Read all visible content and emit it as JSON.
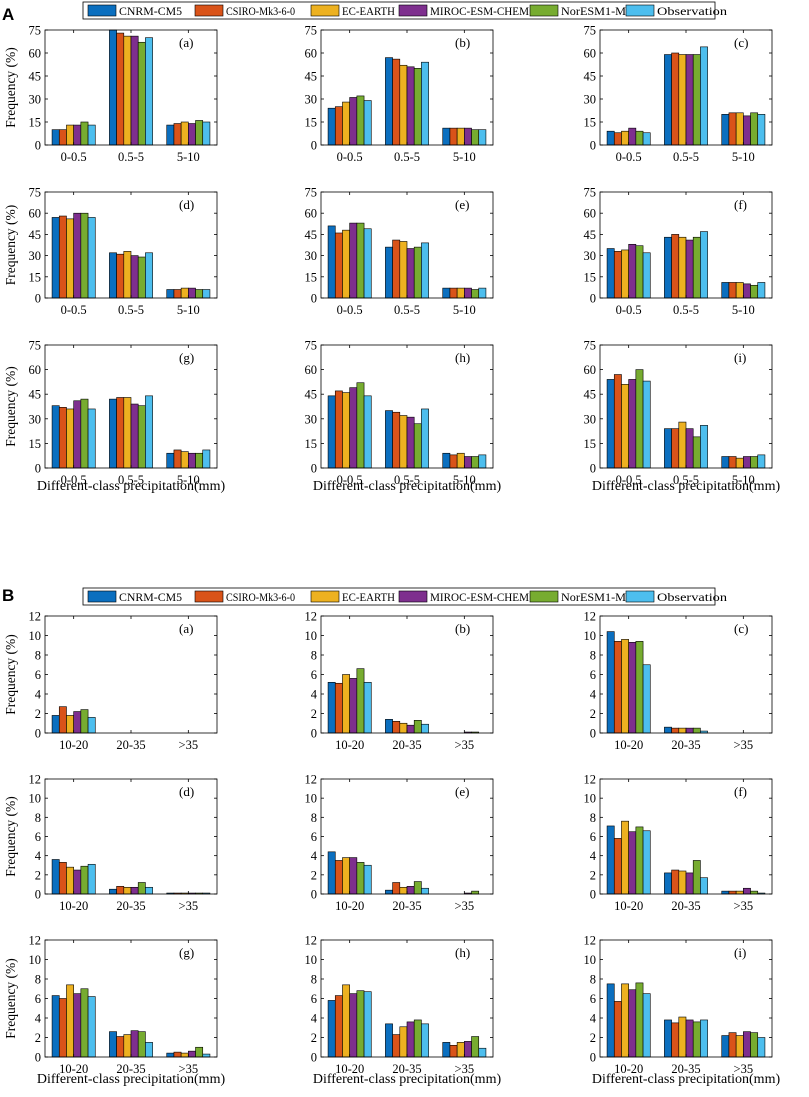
{
  "figure": {
    "colors": [
      "#0b6fbf",
      "#d95319",
      "#edb120",
      "#7e2f8e",
      "#77ac30",
      "#4dbeee"
    ],
    "series_names": [
      "CNRM-CM5",
      "CSIRO-Mk3-6-0",
      "EC-EARTH",
      "MIROC-ESM-CHEM",
      "NorESM1-M",
      "Observation"
    ],
    "ylabel": "Frequency (%)",
    "xlabel": "Different-class precipitation(mm)"
  },
  "chart_data": [
    {
      "type": "bar",
      "panel_label": "A",
      "categories": [
        "0-0.5",
        "0.5-5",
        "5-10"
      ],
      "ylim": [
        0,
        75
      ],
      "yticks": [
        0,
        15,
        30,
        45,
        60,
        75
      ],
      "subplots": [
        {
          "label": "(a)",
          "values": [
            [
              10,
              75,
              13
            ],
            [
              10,
              73,
              14
            ],
            [
              13,
              71,
              15
            ],
            [
              13,
              71,
              14
            ],
            [
              15,
              67,
              16
            ],
            [
              13,
              70,
              15
            ]
          ]
        },
        {
          "label": "(b)",
          "values": [
            [
              24,
              57,
              11
            ],
            [
              25,
              56,
              11
            ],
            [
              28,
              52,
              11
            ],
            [
              31,
              51,
              11
            ],
            [
              32,
              50,
              10
            ],
            [
              29,
              54,
              10
            ]
          ]
        },
        {
          "label": "(c)",
          "values": [
            [
              9,
              59,
              20
            ],
            [
              8,
              60,
              21
            ],
            [
              9,
              59,
              21
            ],
            [
              11,
              59,
              19
            ],
            [
              9,
              59,
              21
            ],
            [
              8,
              64,
              20
            ]
          ]
        },
        {
          "label": "(d)",
          "values": [
            [
              57,
              32,
              6
            ],
            [
              58,
              31,
              6
            ],
            [
              56,
              33,
              7
            ],
            [
              60,
              30,
              7
            ],
            [
              60,
              29,
              6
            ],
            [
              57,
              32,
              6
            ]
          ]
        },
        {
          "label": "(e)",
          "values": [
            [
              51,
              36,
              7
            ],
            [
              46,
              41,
              7
            ],
            [
              48,
              40,
              7
            ],
            [
              53,
              35,
              7
            ],
            [
              53,
              36,
              6
            ],
            [
              49,
              39,
              7
            ]
          ]
        },
        {
          "label": "(f)",
          "values": [
            [
              35,
              43,
              11
            ],
            [
              33,
              45,
              11
            ],
            [
              34,
              43,
              11
            ],
            [
              38,
              41,
              10
            ],
            [
              37,
              43,
              9
            ],
            [
              32,
              47,
              11
            ]
          ]
        },
        {
          "label": "(g)",
          "values": [
            [
              38,
              42,
              9
            ],
            [
              37,
              43,
              11
            ],
            [
              36,
              43,
              10
            ],
            [
              41,
              39,
              9
            ],
            [
              42,
              38,
              9
            ],
            [
              36,
              44,
              11
            ]
          ]
        },
        {
          "label": "(h)",
          "values": [
            [
              44,
              35,
              9
            ],
            [
              47,
              34,
              8
            ],
            [
              46,
              32,
              9
            ],
            [
              49,
              31,
              7
            ],
            [
              52,
              27,
              7
            ],
            [
              44,
              36,
              8
            ]
          ]
        },
        {
          "label": "(i)",
          "values": [
            [
              54,
              24,
              7
            ],
            [
              57,
              24,
              7
            ],
            [
              51,
              28,
              6
            ],
            [
              54,
              24,
              7
            ],
            [
              60,
              19,
              7
            ],
            [
              53,
              26,
              8
            ]
          ]
        }
      ]
    },
    {
      "type": "bar",
      "panel_label": "B",
      "categories": [
        "10-20",
        "20-35",
        ">35"
      ],
      "ylim": [
        0,
        12
      ],
      "yticks": [
        0,
        2,
        4,
        6,
        8,
        10,
        12
      ],
      "subplots": [
        {
          "label": "(a)",
          "values": [
            [
              1.8,
              0,
              0
            ],
            [
              2.7,
              0,
              0
            ],
            [
              1.8,
              0,
              0
            ],
            [
              2.2,
              0,
              0
            ],
            [
              2.4,
              0,
              0
            ],
            [
              1.6,
              0,
              0
            ]
          ]
        },
        {
          "label": "(b)",
          "values": [
            [
              5.2,
              1.4,
              0
            ],
            [
              5.1,
              1.2,
              0
            ],
            [
              6.0,
              1.0,
              0
            ],
            [
              5.6,
              0.8,
              0.1
            ],
            [
              6.6,
              1.3,
              0.1
            ],
            [
              5.2,
              0.9,
              0
            ]
          ]
        },
        {
          "label": "(c)",
          "values": [
            [
              10.4,
              0.6,
              0
            ],
            [
              9.4,
              0.5,
              0
            ],
            [
              9.6,
              0.5,
              0
            ],
            [
              9.3,
              0.5,
              0
            ],
            [
              9.4,
              0.5,
              0
            ],
            [
              7.0,
              0.2,
              0
            ]
          ]
        },
        {
          "label": "(d)",
          "values": [
            [
              3.6,
              0.5,
              0.1
            ],
            [
              3.3,
              0.8,
              0.1
            ],
            [
              2.8,
              0.7,
              0.1
            ],
            [
              2.5,
              0.7,
              0.1
            ],
            [
              2.9,
              1.2,
              0.1
            ],
            [
              3.1,
              0.7,
              0.1
            ]
          ]
        },
        {
          "label": "(e)",
          "values": [
            [
              4.4,
              0.4,
              0
            ],
            [
              3.5,
              1.2,
              0
            ],
            [
              3.8,
              0.7,
              0
            ],
            [
              3.8,
              0.8,
              0.1
            ],
            [
              3.3,
              1.3,
              0.3
            ],
            [
              3.0,
              0.6,
              0
            ]
          ]
        },
        {
          "label": "(f)",
          "values": [
            [
              7.1,
              2.2,
              0.3
            ],
            [
              5.8,
              2.5,
              0.3
            ],
            [
              7.6,
              2.4,
              0.3
            ],
            [
              6.5,
              2.2,
              0.6
            ],
            [
              7.0,
              3.5,
              0.3
            ],
            [
              6.6,
              1.7,
              0.1
            ]
          ]
        },
        {
          "label": "(g)",
          "values": [
            [
              6.3,
              2.6,
              0.4
            ],
            [
              6.0,
              2.1,
              0.5
            ],
            [
              7.4,
              2.3,
              0.4
            ],
            [
              6.5,
              2.7,
              0.6
            ],
            [
              7.0,
              2.6,
              1.0
            ],
            [
              6.2,
              1.5,
              0.3
            ]
          ]
        },
        {
          "label": "(h)",
          "values": [
            [
              5.8,
              3.4,
              1.5
            ],
            [
              6.3,
              2.3,
              1.2
            ],
            [
              7.4,
              3.1,
              1.5
            ],
            [
              6.5,
              3.6,
              1.6
            ],
            [
              6.8,
              3.8,
              2.1
            ],
            [
              6.7,
              3.4,
              0.9
            ]
          ]
        },
        {
          "label": "(i)",
          "values": [
            [
              7.5,
              3.8,
              2.2
            ],
            [
              5.7,
              3.5,
              2.5
            ],
            [
              7.5,
              4.1,
              2.2
            ],
            [
              6.9,
              3.8,
              2.6
            ],
            [
              7.6,
              3.6,
              2.5
            ],
            [
              6.5,
              3.8,
              2.0
            ]
          ]
        }
      ]
    }
  ]
}
